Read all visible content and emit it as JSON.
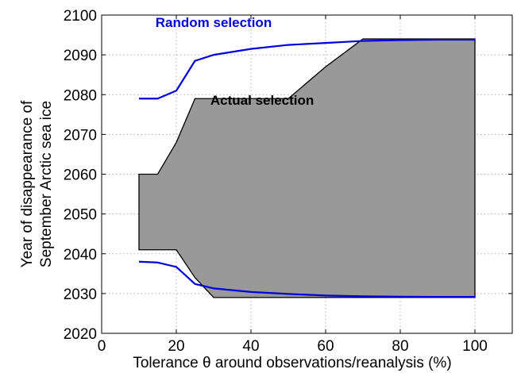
{
  "chart_data": {
    "type": "area",
    "xlabel": "Tolerance θ around observations/reanalysis (%)",
    "ylabel_lines": [
      "Year of disappearance of",
      "September Arctic sea ice"
    ],
    "xlim": [
      0,
      110
    ],
    "ylim": [
      2020,
      2100
    ],
    "xticks": [
      0,
      20,
      40,
      60,
      80,
      100
    ],
    "yticks": [
      2020,
      2030,
      2040,
      2050,
      2060,
      2070,
      2080,
      2090,
      2100
    ],
    "grid": true,
    "grid_style": "dotted",
    "colors": {
      "fill": "#999999",
      "actual": "#000000",
      "random": "#0000dd",
      "grid": "#b0b0b0",
      "axes": "#000000"
    },
    "series": [
      {
        "name": "Actual selection",
        "kind": "band",
        "upper": {
          "x": [
            10,
            15,
            20,
            25,
            30,
            40,
            50,
            60,
            70,
            80,
            90,
            100
          ],
          "y": [
            2060,
            2060,
            2068,
            2079,
            2079,
            2079,
            2079,
            2087,
            2094,
            2094,
            2094,
            2094
          ]
        },
        "lower": {
          "x": [
            10,
            15,
            20,
            25,
            30,
            40,
            50,
            60,
            70,
            80,
            90,
            100
          ],
          "y": [
            2041,
            2041,
            2041,
            2034,
            2029,
            2029,
            2029,
            2029,
            2029,
            2029,
            2029,
            2029
          ]
        }
      },
      {
        "name": "Random selection",
        "kind": "lines",
        "upper": {
          "x": [
            10,
            15,
            20,
            25,
            30,
            40,
            50,
            60,
            70,
            80,
            90,
            100
          ],
          "y": [
            2079,
            2079,
            2081,
            2088.5,
            2090,
            2091.5,
            2092.5,
            2093,
            2093.5,
            2093.7,
            2093.8,
            2093.8
          ]
        },
        "lower": {
          "x": [
            10,
            15,
            20,
            25,
            30,
            40,
            50,
            60,
            70,
            80,
            90,
            100
          ],
          "y": [
            2038,
            2037.8,
            2036.7,
            2032.4,
            2031.3,
            2030.4,
            2029.9,
            2029.5,
            2029.3,
            2029.2,
            2029.15,
            2029.15
          ]
        }
      }
    ],
    "annotations": [
      {
        "text": "Random selection",
        "x": 30,
        "y": 2097,
        "anchor": "middle",
        "color": "#0000dd"
      },
      {
        "text": "Actual selection",
        "x": 43,
        "y": 2077.5,
        "anchor": "middle",
        "color": "#000000"
      }
    ]
  }
}
